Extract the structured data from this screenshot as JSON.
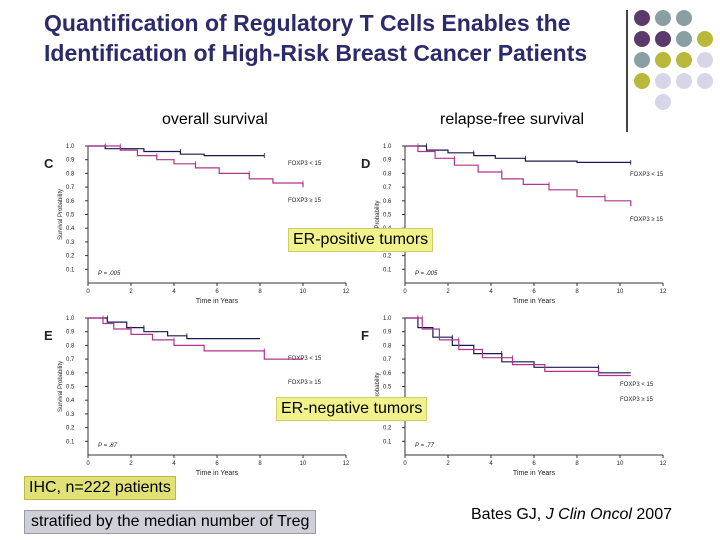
{
  "title": "Quantification of Regulatory T Cells Enables the Identification of High-Risk Breast Cancer Patients",
  "column_headers": {
    "overall": "overall survival",
    "relapse": "relapse-free survival"
  },
  "row_labels": {
    "er_positive": "ER-positive tumors",
    "er_negative": "ER-negative tumors"
  },
  "footer": {
    "ihc": "IHC, n=222 patients",
    "stratified": "stratified by the median number of Treg",
    "citation_author": "Bates GJ, ",
    "citation_journal": "J Clin Oncol",
    "citation_year": " 2007"
  },
  "colors": {
    "foxp3_low": "#1a1a4a",
    "foxp3_high": "#b0338f",
    "accent_olive": "#b8b83a",
    "accent_teal": "#8a9fa3",
    "accent_purple": "#5b3a6b",
    "accent_lavender": "#d6d6e8",
    "title": "#2b2b6b"
  },
  "chart_data": [
    {
      "panel": "C",
      "type": "line",
      "title": "",
      "xlabel": "Time in Years",
      "ylabel": "Survival Probability",
      "xlim": [
        0,
        12
      ],
      "ylim": [
        0,
        1.0
      ],
      "x_ticks": [
        "0",
        "2",
        "4",
        "6",
        "8",
        "10",
        "12"
      ],
      "y_ticks": [
        "0.1",
        "0.2",
        "0.3",
        "0.4",
        "0.5",
        "0.6",
        "0.7",
        "0.8",
        "0.9",
        "1.0"
      ],
      "p_value": "P = .005",
      "series": [
        {
          "name": "FOXP3 < 15",
          "points": [
            [
              0,
              1.0
            ],
            [
              0.8,
              1.0
            ],
            [
              0.8,
              0.98
            ],
            [
              2.6,
              0.98
            ],
            [
              2.6,
              0.96
            ],
            [
              4.3,
              0.96
            ],
            [
              4.3,
              0.94
            ],
            [
              5.4,
              0.94
            ],
            [
              5.4,
              0.93
            ],
            [
              8.2,
              0.93
            ]
          ]
        },
        {
          "name": "FOXP3 ≥ 15",
          "points": [
            [
              0,
              1.0
            ],
            [
              1.5,
              1.0
            ],
            [
              1.5,
              0.97
            ],
            [
              2.3,
              0.97
            ],
            [
              2.3,
              0.93
            ],
            [
              3.2,
              0.93
            ],
            [
              3.2,
              0.9
            ],
            [
              4.0,
              0.9
            ],
            [
              4.0,
              0.87
            ],
            [
              5.0,
              0.87
            ],
            [
              5.0,
              0.84
            ],
            [
              6.1,
              0.84
            ],
            [
              6.1,
              0.8
            ],
            [
              7.5,
              0.8
            ],
            [
              7.5,
              0.76
            ],
            [
              8.6,
              0.76
            ],
            [
              8.6,
              0.73
            ],
            [
              10.0,
              0.73
            ],
            [
              10.0,
              0.7
            ]
          ]
        }
      ]
    },
    {
      "panel": "D",
      "type": "line",
      "title": "",
      "xlabel": "Time in Years",
      "ylabel": "Probability",
      "xlim": [
        0,
        12
      ],
      "ylim": [
        0,
        1.0
      ],
      "x_ticks": [
        "0",
        "2",
        "4",
        "6",
        "8",
        "10",
        "12"
      ],
      "y_ticks": [
        "0.1",
        "0.2",
        "0.3",
        "0.4",
        "0.5",
        "0.6",
        "0.7",
        "0.8",
        "0.9",
        "1.0"
      ],
      "p_value": "P = .005",
      "series": [
        {
          "name": "FOXP3 < 15",
          "points": [
            [
              0,
              1.0
            ],
            [
              1.0,
              1.0
            ],
            [
              1.0,
              0.97
            ],
            [
              2.0,
              0.97
            ],
            [
              2.0,
              0.95
            ],
            [
              3.2,
              0.95
            ],
            [
              3.2,
              0.93
            ],
            [
              4.2,
              0.93
            ],
            [
              4.2,
              0.91
            ],
            [
              5.6,
              0.91
            ],
            [
              5.6,
              0.89
            ],
            [
              8.0,
              0.89
            ],
            [
              8.0,
              0.88
            ],
            [
              10.5,
              0.88
            ]
          ]
        },
        {
          "name": "FOXP3 ≥ 15",
          "points": [
            [
              0,
              1.0
            ],
            [
              0.6,
              1.0
            ],
            [
              0.6,
              0.96
            ],
            [
              1.4,
              0.96
            ],
            [
              1.4,
              0.91
            ],
            [
              2.3,
              0.91
            ],
            [
              2.3,
              0.86
            ],
            [
              3.4,
              0.86
            ],
            [
              3.4,
              0.81
            ],
            [
              4.5,
              0.81
            ],
            [
              4.5,
              0.76
            ],
            [
              5.5,
              0.76
            ],
            [
              5.5,
              0.72
            ],
            [
              6.7,
              0.72
            ],
            [
              6.7,
              0.68
            ],
            [
              8.0,
              0.68
            ],
            [
              8.0,
              0.63
            ],
            [
              9.3,
              0.63
            ],
            [
              9.3,
              0.6
            ],
            [
              10.5,
              0.6
            ],
            [
              10.5,
              0.56
            ]
          ]
        }
      ]
    },
    {
      "panel": "E",
      "type": "line",
      "title": "",
      "xlabel": "Time in Years",
      "ylabel": "Survival Probability",
      "xlim": [
        0,
        12
      ],
      "ylim": [
        0,
        1.0
      ],
      "x_ticks": [
        "0",
        "2",
        "4",
        "6",
        "8",
        "10",
        "12"
      ],
      "y_ticks": [
        "0.1",
        "0.2",
        "0.3",
        "0.4",
        "0.5",
        "0.6",
        "0.7",
        "0.8",
        "0.9",
        "1.0"
      ],
      "p_value": "P = .87",
      "series": [
        {
          "name": "FOXP3 < 15",
          "points": [
            [
              0,
              1.0
            ],
            [
              0.9,
              1.0
            ],
            [
              0.9,
              0.97
            ],
            [
              1.8,
              0.97
            ],
            [
              1.8,
              0.93
            ],
            [
              2.6,
              0.93
            ],
            [
              2.6,
              0.9
            ],
            [
              3.7,
              0.9
            ],
            [
              3.7,
              0.87
            ],
            [
              4.6,
              0.87
            ],
            [
              4.6,
              0.85
            ],
            [
              8.0,
              0.85
            ]
          ]
        },
        {
          "name": "FOXP3 ≥ 15",
          "points": [
            [
              0,
              1.0
            ],
            [
              0.7,
              1.0
            ],
            [
              0.7,
              0.96
            ],
            [
              1.2,
              0.96
            ],
            [
              1.2,
              0.92
            ],
            [
              2.0,
              0.92
            ],
            [
              2.0,
              0.88
            ],
            [
              3.0,
              0.88
            ],
            [
              3.0,
              0.84
            ],
            [
              4.0,
              0.84
            ],
            [
              4.0,
              0.8
            ],
            [
              5.4,
              0.8
            ],
            [
              5.4,
              0.76
            ],
            [
              8.2,
              0.76
            ],
            [
              8.2,
              0.7
            ],
            [
              10.0,
              0.7
            ]
          ]
        }
      ]
    },
    {
      "panel": "F",
      "type": "line",
      "title": "",
      "xlabel": "Time in Years",
      "ylabel": "Probability",
      "xlim": [
        0,
        12
      ],
      "ylim": [
        0,
        1.0
      ],
      "x_ticks": [
        "0",
        "2",
        "4",
        "6",
        "8",
        "10",
        "12"
      ],
      "y_ticks": [
        "0.1",
        "0.2",
        "0.3",
        "0.4",
        "0.5",
        "0.6",
        "0.7",
        "0.8",
        "0.9",
        "1.0"
      ],
      "p_value": "P = .77",
      "series": [
        {
          "name": "FOXP3 < 15",
          "points": [
            [
              0,
              1.0
            ],
            [
              0.6,
              1.0
            ],
            [
              0.6,
              0.93
            ],
            [
              1.3,
              0.93
            ],
            [
              1.3,
              0.86
            ],
            [
              2.2,
              0.86
            ],
            [
              2.2,
              0.8
            ],
            [
              3.2,
              0.8
            ],
            [
              3.2,
              0.74
            ],
            [
              4.5,
              0.74
            ],
            [
              4.5,
              0.68
            ],
            [
              6.0,
              0.68
            ],
            [
              6.0,
              0.64
            ],
            [
              9.0,
              0.64
            ],
            [
              9.0,
              0.6
            ],
            [
              10.5,
              0.6
            ]
          ]
        },
        {
          "name": "FOXP3 ≥ 15",
          "points": [
            [
              0,
              1.0
            ],
            [
              0.8,
              1.0
            ],
            [
              0.8,
              0.92
            ],
            [
              1.6,
              0.92
            ],
            [
              1.6,
              0.84
            ],
            [
              2.5,
              0.84
            ],
            [
              2.5,
              0.77
            ],
            [
              3.6,
              0.77
            ],
            [
              3.6,
              0.71
            ],
            [
              5.0,
              0.71
            ],
            [
              5.0,
              0.66
            ],
            [
              6.5,
              0.66
            ],
            [
              6.5,
              0.61
            ],
            [
              9.0,
              0.61
            ],
            [
              9.0,
              0.58
            ],
            [
              10.5,
              0.58
            ]
          ]
        }
      ]
    }
  ]
}
